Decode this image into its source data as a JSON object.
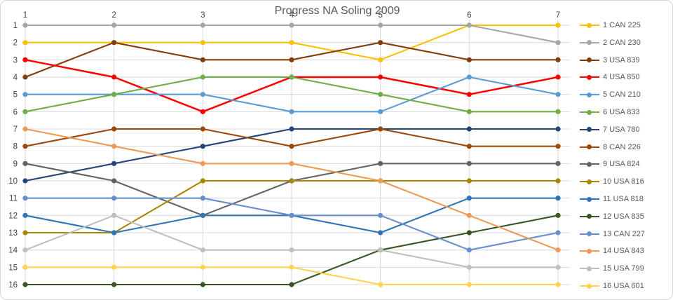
{
  "title": "Progress NA Soling 2009",
  "chart_data": {
    "type": "line",
    "title": "Progress NA Soling 2009",
    "xlabel": "",
    "ylabel": "",
    "x": [
      1,
      2,
      3,
      4,
      5,
      6,
      7
    ],
    "x_ticks": [
      "1",
      "2",
      "3",
      "4",
      "5",
      "6",
      "7"
    ],
    "y_ticks": [
      "1",
      "2",
      "3",
      "4",
      "5",
      "6",
      "7",
      "8",
      "9",
      "10",
      "11",
      "12",
      "13",
      "14",
      "15",
      "16"
    ],
    "ylim": [
      1,
      16
    ],
    "y_inverted": true,
    "x_axis_position": "top",
    "grid": true,
    "legend_position": "right",
    "series": [
      {
        "name": "1 CAN 225",
        "color": "#FFC000",
        "values": [
          2,
          2,
          2,
          2,
          3,
          1,
          1
        ]
      },
      {
        "name": "2 CAN 230",
        "color": "#A6A6A6",
        "values": [
          1,
          1,
          1,
          1,
          1,
          1,
          2
        ]
      },
      {
        "name": "3 USA 839",
        "color": "#843C0C",
        "values": [
          4,
          2,
          3,
          3,
          2,
          3,
          3
        ]
      },
      {
        "name": "4 USA 850",
        "color": "#FF0000",
        "values": [
          3,
          4,
          6,
          4,
          4,
          5,
          4
        ]
      },
      {
        "name": "5 CAN 210",
        "color": "#5B9BD5",
        "values": [
          5,
          5,
          5,
          6,
          6,
          4,
          5
        ]
      },
      {
        "name": "6 USA 833",
        "color": "#70AD47",
        "values": [
          6,
          5,
          4,
          4,
          5,
          6,
          6
        ]
      },
      {
        "name": "7 USA 780",
        "color": "#264478",
        "values": [
          10,
          9,
          8,
          7,
          7,
          7,
          7
        ]
      },
      {
        "name": "8 CAN 226",
        "color": "#9E480E",
        "values": [
          8,
          7,
          7,
          8,
          7,
          8,
          8
        ]
      },
      {
        "name": "9 USA 824",
        "color": "#636363",
        "values": [
          9,
          10,
          12,
          10,
          9,
          9,
          9
        ]
      },
      {
        "name": "10 USA 816",
        "color": "#A98600",
        "values": [
          13,
          13,
          10,
          10,
          10,
          10,
          10
        ]
      },
      {
        "name": "11 USA 818",
        "color": "#2E75B6",
        "values": [
          12,
          13,
          12,
          12,
          13,
          11,
          11
        ]
      },
      {
        "name": "12 USA 835",
        "color": "#375623",
        "values": [
          16,
          16,
          16,
          16,
          14,
          13,
          12
        ]
      },
      {
        "name": "13 CAN 227",
        "color": "#698ED0",
        "values": [
          11,
          11,
          11,
          12,
          12,
          14,
          13
        ]
      },
      {
        "name": "14 USA 843",
        "color": "#ED9A56",
        "values": [
          7,
          8,
          9,
          9,
          10,
          12,
          14
        ]
      },
      {
        "name": "15 USA 799",
        "color": "#BFBFBF",
        "values": [
          14,
          12,
          14,
          14,
          14,
          15,
          15
        ]
      },
      {
        "name": "16 USA 601",
        "color": "#FFD34D",
        "values": [
          15,
          15,
          15,
          15,
          16,
          16,
          16
        ]
      }
    ]
  },
  "style": {
    "gridline_color": "#D9D9D9",
    "axis_label_color": "#404040",
    "title_color": "#595959",
    "legend_text_color": "#595959"
  }
}
